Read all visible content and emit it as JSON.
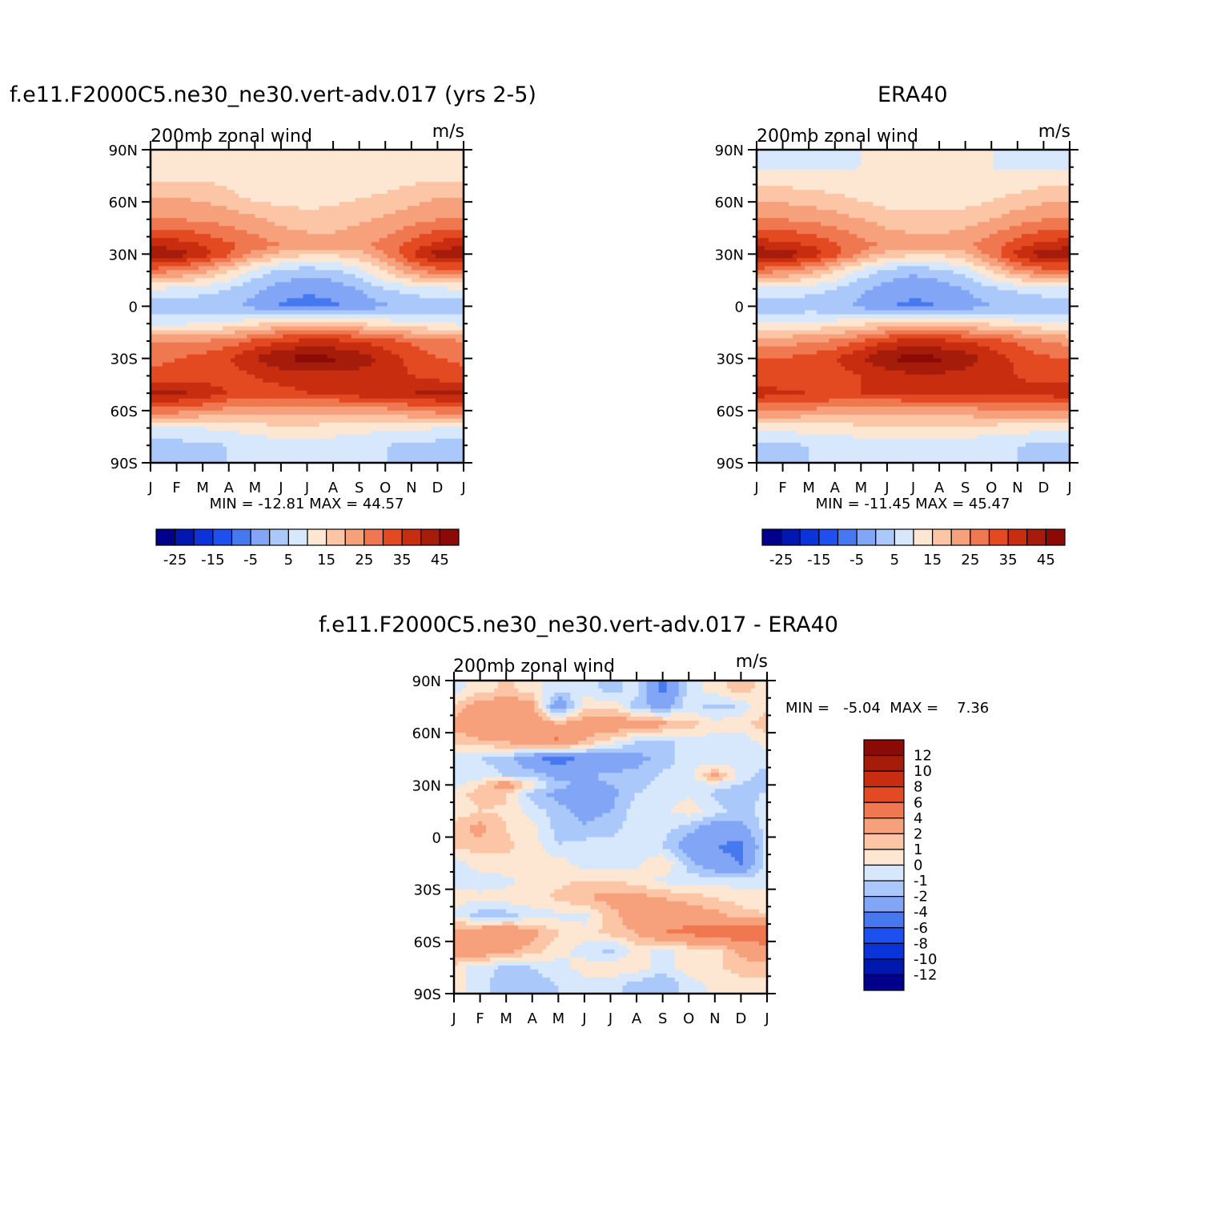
{
  "panels": [
    {
      "title": "f.e11.F2000C5.ne30_ne30.vert-adv.017 (yrs 2-5)",
      "left_label": "200mb zonal wind",
      "right_label": "m/s",
      "stats": "MIN = -12.81  MAX =   44.57",
      "colorbar_labels": [
        "-25",
        "-15",
        "-5",
        "5",
        "15",
        "25",
        "35",
        "45"
      ]
    },
    {
      "title": "ERA40",
      "left_label": "200mb zonal wind",
      "right_label": "m/s",
      "stats": "MIN = -11.45  MAX =   45.47",
      "colorbar_labels": [
        "-25",
        "-15",
        "-5",
        "5",
        "15",
        "25",
        "35",
        "45"
      ]
    },
    {
      "title": "f.e11.F2000C5.ne30_ne30.vert-adv.017 - ERA40",
      "left_label": "200mb zonal wind",
      "right_label": "m/s",
      "stats": "MIN =   -5.04  MAX =    7.36",
      "colorbar_labels": [
        "12",
        "10",
        "8",
        "6",
        "4",
        "2",
        "1",
        "0",
        "-1",
        "-2",
        "-4",
        "-6",
        "-8",
        "-10",
        "-12"
      ]
    }
  ],
  "colors": {
    "abs_scale": [
      "#00008b",
      "#0017b0",
      "#0a33d9",
      "#1e50f0",
      "#4678f0",
      "#82a5f5",
      "#aac8fa",
      "#d7e8fc",
      "#fde6d2",
      "#fcc6a6",
      "#f7a07c",
      "#f07850",
      "#e34a22",
      "#c72d0f",
      "#a51c0a",
      "#8b0a05"
    ],
    "diff_scale": [
      "#00008b",
      "#0017b0",
      "#0a33d9",
      "#1e50f0",
      "#4678f0",
      "#82a5f5",
      "#aac8fa",
      "#d7e8fc",
      "#fde6d2",
      "#fcc6a6",
      "#f7a07c",
      "#f07850",
      "#e34a22",
      "#c72d0f",
      "#a51c0a",
      "#8b0a05"
    ]
  },
  "chart_data": [
    {
      "type": "heatmap",
      "title": "f.e11.F2000C5.ne30_ne30.vert-adv.017 (yrs 2-5)",
      "variable": "200mb zonal wind",
      "units": "m/s",
      "x_ticks": [
        "J",
        "F",
        "M",
        "A",
        "M",
        "J",
        "J",
        "A",
        "S",
        "O",
        "N",
        "D",
        "J"
      ],
      "y_ticks": [
        "90N",
        "60N",
        "30N",
        "0",
        "30S",
        "60S",
        "90S"
      ],
      "levels": [
        -30,
        -25,
        -20,
        -15,
        -10,
        -5,
        0,
        5,
        10,
        15,
        20,
        25,
        30,
        35,
        40,
        45,
        50
      ],
      "min": -12.81,
      "max": 44.57,
      "latitudes": [
        80,
        65,
        50,
        35,
        30,
        20,
        10,
        0,
        -10,
        -20,
        -30,
        -40,
        -50,
        -60,
        -70,
        -80
      ],
      "months": [
        "J",
        "F",
        "M",
        "A",
        "M",
        "J",
        "J",
        "A",
        "S",
        "O",
        "N",
        "D",
        "J"
      ],
      "values": [
        [
          6,
          6,
          7,
          6,
          5,
          5,
          5,
          5,
          5,
          6,
          6,
          6,
          6
        ],
        [
          14,
          14,
          13,
          11,
          7,
          7,
          7,
          8,
          9,
          10,
          12,
          14,
          14
        ],
        [
          20,
          20,
          19,
          18,
          16,
          13,
          12,
          12,
          14,
          16,
          18,
          20,
          20
        ],
        [
          34,
          33,
          30,
          26,
          23,
          20,
          18,
          18,
          19,
          22,
          27,
          32,
          34
        ],
        [
          40,
          38,
          33,
          26,
          18,
          13,
          11,
          11,
          13,
          20,
          30,
          38,
          40
        ],
        [
          22,
          20,
          16,
          10,
          3,
          -2,
          -3,
          -2,
          3,
          10,
          18,
          22,
          22
        ],
        [
          5,
          4,
          2,
          0,
          -4,
          -7,
          -9,
          -8,
          -5,
          0,
          2,
          4,
          5
        ],
        [
          -3,
          -3,
          -3,
          -4,
          -7,
          -11,
          -12,
          -11,
          -8,
          -6,
          -4,
          -3,
          -3
        ],
        [
          4,
          4,
          5,
          6,
          9,
          11,
          13,
          12,
          10,
          8,
          6,
          5,
          4
        ],
        [
          20,
          20,
          20,
          22,
          26,
          30,
          31,
          31,
          30,
          27,
          24,
          22,
          20
        ],
        [
          24,
          25,
          27,
          30,
          35,
          40,
          42,
          41,
          38,
          33,
          28,
          25,
          24
        ],
        [
          26,
          26,
          27,
          28,
          30,
          32,
          33,
          33,
          33,
          33,
          30,
          28,
          26
        ],
        [
          36,
          36,
          34,
          30,
          28,
          28,
          30,
          31,
          33,
          34,
          35,
          36,
          36
        ],
        [
          22,
          22,
          20,
          18,
          17,
          16,
          16,
          16,
          17,
          18,
          20,
          22,
          22
        ],
        [
          5,
          5,
          5,
          6,
          8,
          9,
          9,
          8,
          7,
          6,
          6,
          5,
          5
        ],
        [
          -2,
          -2,
          -1,
          0,
          1,
          2,
          2,
          2,
          1,
          0,
          -1,
          -2,
          -2
        ]
      ]
    },
    {
      "type": "heatmap",
      "title": "ERA40",
      "variable": "200mb zonal wind",
      "units": "m/s",
      "x_ticks": [
        "J",
        "F",
        "M",
        "A",
        "M",
        "J",
        "J",
        "A",
        "S",
        "O",
        "N",
        "D",
        "J"
      ],
      "y_ticks": [
        "90N",
        "60N",
        "30N",
        "0",
        "30S",
        "60S",
        "90S"
      ],
      "levels": [
        -30,
        -25,
        -20,
        -15,
        -10,
        -5,
        0,
        5,
        10,
        15,
        20,
        25,
        30,
        35,
        40,
        45,
        50
      ],
      "min": -11.45,
      "max": 45.47,
      "latitudes": [
        80,
        65,
        50,
        35,
        30,
        20,
        10,
        0,
        -10,
        -20,
        -30,
        -40,
        -50,
        -60,
        -70,
        -80
      ],
      "months": [
        "J",
        "F",
        "M",
        "A",
        "M",
        "J",
        "J",
        "A",
        "S",
        "O",
        "N",
        "D",
        "J"
      ],
      "values": [
        [
          4,
          4,
          4,
          4,
          5,
          6,
          6,
          6,
          6,
          5,
          4,
          4,
          4
        ],
        [
          12,
          12,
          11,
          10,
          8,
          6,
          5,
          5,
          6,
          8,
          10,
          12,
          12
        ],
        [
          20,
          20,
          19,
          17,
          15,
          13,
          12,
          12,
          13,
          15,
          18,
          20,
          20
        ],
        [
          33,
          32,
          30,
          26,
          22,
          19,
          17,
          17,
          19,
          23,
          28,
          32,
          33
        ],
        [
          41,
          39,
          34,
          27,
          19,
          13,
          11,
          11,
          14,
          22,
          32,
          39,
          41
        ],
        [
          22,
          20,
          16,
          10,
          3,
          -2,
          -4,
          -2,
          2,
          10,
          18,
          22,
          22
        ],
        [
          4,
          4,
          2,
          0,
          -4,
          -7,
          -9,
          -8,
          -5,
          -1,
          1,
          3,
          4
        ],
        [
          -4,
          -4,
          -3,
          -4,
          -6,
          -10,
          -11,
          -10,
          -8,
          -5,
          -4,
          -4,
          -4
        ],
        [
          6,
          6,
          6,
          7,
          9,
          11,
          12,
          12,
          11,
          9,
          7,
          6,
          6
        ],
        [
          18,
          18,
          19,
          21,
          25,
          30,
          32,
          31,
          30,
          27,
          24,
          20,
          18
        ],
        [
          25,
          25,
          27,
          30,
          35,
          40,
          42,
          41,
          38,
          33,
          29,
          26,
          25
        ],
        [
          27,
          26,
          27,
          28,
          30,
          32,
          34,
          34,
          33,
          32,
          30,
          28,
          27
        ],
        [
          33,
          31,
          30,
          30,
          30,
          31,
          32,
          32,
          32,
          32,
          32,
          32,
          33
        ],
        [
          20,
          20,
          19,
          18,
          17,
          16,
          16,
          17,
          18,
          19,
          20,
          20,
          20
        ],
        [
          7,
          7,
          7,
          7,
          9,
          10,
          10,
          10,
          9,
          8,
          7,
          7,
          7
        ],
        [
          -1,
          -1,
          0,
          1,
          2,
          3,
          3,
          3,
          2,
          1,
          0,
          -1,
          -1
        ]
      ]
    },
    {
      "type": "heatmap",
      "title": "f.e11.F2000C5.ne30_ne30.vert-adv.017 - ERA40",
      "variable": "200mb zonal wind",
      "units": "m/s",
      "x_ticks": [
        "J",
        "F",
        "M",
        "A",
        "M",
        "J",
        "J",
        "A",
        "S",
        "O",
        "N",
        "D",
        "J"
      ],
      "y_ticks": [
        "90N",
        "60N",
        "30N",
        "0",
        "30S",
        "60S",
        "90S"
      ],
      "levels": [
        -12,
        -10,
        -8,
        -6,
        -4,
        -2,
        -1,
        0,
        1,
        2,
        4,
        6,
        8,
        10,
        12
      ],
      "min": -5.04,
      "max": 7.36,
      "latitudes": [
        85,
        75,
        65,
        55,
        45,
        35,
        30,
        25,
        15,
        5,
        -5,
        -15,
        -25,
        -35,
        -45,
        -55,
        -65,
        -75,
        -85
      ],
      "months": [
        "J",
        "F",
        "M",
        "A",
        "M",
        "J",
        "J",
        "A",
        "S",
        "O",
        "N",
        "D",
        "J"
      ],
      "values": [
        [
          -0.5,
          0.5,
          1.2,
          0.5,
          -0.8,
          -0.3,
          -1.5,
          -0.5,
          -4.5,
          -0.5,
          0.5,
          1.5,
          0.5
        ],
        [
          1.2,
          2.8,
          3.2,
          2.5,
          -3.5,
          0.5,
          1.0,
          -1.5,
          -2.5,
          -0.5,
          -1.5,
          -0.8,
          1.0
        ],
        [
          2.5,
          3.2,
          3.5,
          3.0,
          2.2,
          2.8,
          3.2,
          3.0,
          2.5,
          1.5,
          0.5,
          0.8,
          1.5
        ],
        [
          1.2,
          1.8,
          2.2,
          3.0,
          4.5,
          2.0,
          0.5,
          -1.0,
          -1.5,
          -0.5,
          -0.5,
          -0.8,
          0.5
        ],
        [
          -0.5,
          -1.0,
          -1.5,
          -3.5,
          -5.0,
          -3.5,
          -3.0,
          -2.5,
          -1.5,
          -0.5,
          -1.0,
          -0.5,
          -0.5
        ],
        [
          -1.0,
          -0.5,
          -1.0,
          -1.2,
          -2.5,
          -2.0,
          -1.8,
          -1.5,
          -0.8,
          -0.5,
          2.5,
          -0.5,
          -1.5
        ],
        [
          -0.5,
          1.0,
          3.5,
          0.5,
          -1.5,
          -2.5,
          -2.0,
          -1.5,
          -0.5,
          -0.3,
          -0.5,
          -1.0,
          -2.0
        ],
        [
          0.5,
          1.5,
          1.2,
          -1.5,
          -2.5,
          -3.0,
          -2.5,
          -1.0,
          -0.5,
          -0.2,
          -1.2,
          -2.0,
          -0.5
        ],
        [
          0.3,
          1.0,
          0.8,
          -0.5,
          -1.5,
          -2.5,
          -2.0,
          -0.5,
          -0.3,
          0.5,
          -0.5,
          -1.5,
          -0.5
        ],
        [
          1.5,
          2.5,
          1.0,
          0.5,
          -1.5,
          -1.8,
          -1.5,
          -0.3,
          -0.5,
          -1.5,
          -3.0,
          -2.5,
          -0.5
        ],
        [
          1.2,
          1.5,
          1.2,
          0.5,
          -1.0,
          -0.5,
          -0.5,
          -0.3,
          -1.0,
          -3.0,
          -4.0,
          -4.5,
          -0.5
        ],
        [
          -0.5,
          0.5,
          0.8,
          0.5,
          0.5,
          -0.5,
          -0.5,
          -0.3,
          1.0,
          -1.5,
          -3.5,
          -4.0,
          -0.5
        ],
        [
          -0.3,
          -0.5,
          -0.3,
          0.5,
          0.8,
          1.0,
          1.0,
          0.5,
          -0.3,
          -0.5,
          -0.3,
          -0.5,
          -0.5
        ],
        [
          0.5,
          0.3,
          0.5,
          0.8,
          1.2,
          2.0,
          2.5,
          2.5,
          2.0,
          1.5,
          1.0,
          0.5,
          0.5
        ],
        [
          -0.3,
          -1.5,
          -1.5,
          -0.5,
          -0.3,
          -0.5,
          1.5,
          3.0,
          3.5,
          3.0,
          2.5,
          1.5,
          1.0
        ],
        [
          3.0,
          3.5,
          4.0,
          2.5,
          1.0,
          0.5,
          1.5,
          2.0,
          4.0,
          4.5,
          5.0,
          5.5,
          6.0
        ],
        [
          3.0,
          3.5,
          2.5,
          1.5,
          0.5,
          -0.5,
          -1.5,
          0.5,
          -0.5,
          0.5,
          0.5,
          2.5,
          3.0
        ],
        [
          0.5,
          -0.5,
          -1.2,
          -1.0,
          -0.5,
          0.5,
          0.8,
          0.5,
          -0.5,
          0.5,
          0.8,
          1.5,
          1.5
        ],
        [
          0.5,
          -0.5,
          -2.0,
          -1.5,
          -1.0,
          -0.5,
          -0.5,
          -1.5,
          -2.0,
          -0.5,
          0.3,
          0.5,
          0.5
        ]
      ]
    }
  ]
}
